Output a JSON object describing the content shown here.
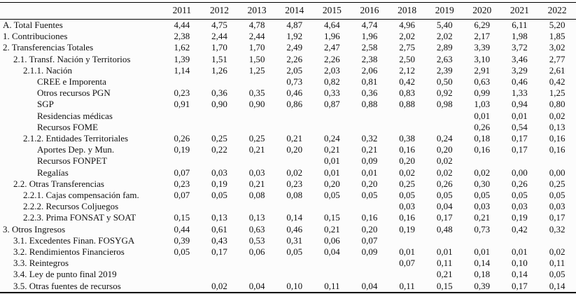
{
  "table": {
    "columns": [
      "",
      "2011",
      "2012",
      "2013",
      "2014",
      "2015",
      "2016",
      "2018",
      "2019",
      "2020",
      "2021",
      "2022"
    ],
    "rows": [
      {
        "label": "A. Total Fuentes",
        "indent": 0,
        "values": [
          "4,44",
          "4,75",
          "4,78",
          "4,87",
          "4,64",
          "4,74",
          "4,96",
          "5,40",
          "6,29",
          "6,11",
          "5,20"
        ]
      },
      {
        "label": "1. Contribuciones",
        "indent": 0,
        "values": [
          "2,38",
          "2,44",
          "2,44",
          "1,92",
          "1,96",
          "1,96",
          "2,02",
          "2,02",
          "2,17",
          "1,98",
          "1,85"
        ]
      },
      {
        "label": "2. Transferencias Totales",
        "indent": 0,
        "values": [
          "1,62",
          "1,70",
          "1,70",
          "2,49",
          "2,47",
          "2,58",
          "2,75",
          "2,89",
          "3,39",
          "3,72",
          "3,02"
        ]
      },
      {
        "label": "2.1. Transf. Nación y Territorios",
        "indent": 1,
        "values": [
          "1,39",
          "1,51",
          "1,50",
          "2,26",
          "2,26",
          "2,38",
          "2,50",
          "2,63",
          "3,10",
          "3,46",
          "2,77"
        ]
      },
      {
        "label": "2.1.1. Nación",
        "indent": 2,
        "values": [
          "1,14",
          "1,26",
          "1,25",
          "2,05",
          "2,03",
          "2,06",
          "2,12",
          "2,39",
          "2,91",
          "3,29",
          "2,61"
        ]
      },
      {
        "label": "CREE e Imporenta",
        "indent": 3,
        "values": [
          "",
          "",
          "",
          "0,73",
          "0,82",
          "0,81",
          "0,42",
          "0,50",
          "0,63",
          "0,46",
          "0,42"
        ]
      },
      {
        "label": "Otros recursos PGN",
        "indent": 3,
        "values": [
          "0,23",
          "0,36",
          "0,35",
          "0,46",
          "0,33",
          "0,36",
          "0,83",
          "0,92",
          "0,99",
          "1,33",
          "1,25"
        ]
      },
      {
        "label": "SGP",
        "indent": 3,
        "values": [
          "0,91",
          "0,90",
          "0,90",
          "0,86",
          "0,87",
          "0,88",
          "0,88",
          "0,98",
          "1,03",
          "0,94",
          "0,80"
        ]
      },
      {
        "label": "Residencias médicas",
        "indent": 3,
        "values": [
          "",
          "",
          "",
          "",
          "",
          "",
          "",
          "",
          "0,01",
          "0,01",
          "0,02"
        ]
      },
      {
        "label": "Recursos FOME",
        "indent": 3,
        "values": [
          "",
          "",
          "",
          "",
          "",
          "",
          "",
          "",
          "0,26",
          "0,54",
          "0,13"
        ]
      },
      {
        "label": "2.1.2. Entidades Territoriales",
        "indent": 2,
        "values": [
          "0,26",
          "0,25",
          "0,25",
          "0,21",
          "0,24",
          "0,32",
          "0,38",
          "0,24",
          "0,18",
          "0,17",
          "0,16"
        ]
      },
      {
        "label": "Aportes Dep. y Mun.",
        "indent": 3,
        "values": [
          "0,19",
          "0,22",
          "0,21",
          "0,20",
          "0,21",
          "0,21",
          "0,16",
          "0,20",
          "0,16",
          "0,17",
          "0,16"
        ]
      },
      {
        "label": "Recursos FONPET",
        "indent": 3,
        "values": [
          "",
          "",
          "",
          "",
          "0,01",
          "0,09",
          "0,20",
          "0,02",
          "",
          "",
          ""
        ]
      },
      {
        "label": "Regalías",
        "indent": 3,
        "values": [
          "0,07",
          "0,03",
          "0,03",
          "0,02",
          "0,01",
          "0,01",
          "0,02",
          "0,02",
          "0,02",
          "0,00",
          "0,00"
        ]
      },
      {
        "label": "2.2. Otras Transferencias",
        "indent": 1,
        "values": [
          "0,23",
          "0,19",
          "0,21",
          "0,23",
          "0,20",
          "0,20",
          "0,25",
          "0,26",
          "0,30",
          "0,26",
          "0,25"
        ]
      },
      {
        "label": "2.2.1. Cajas compensación fam.",
        "indent": 2,
        "values": [
          "0,07",
          "0,05",
          "0,08",
          "0,08",
          "0,05",
          "0,05",
          "0,05",
          "0,05",
          "0,05",
          "0,05",
          "0,05"
        ]
      },
      {
        "label": "2.2.2. Recursos Coljuegos",
        "indent": 2,
        "values": [
          "",
          "",
          "",
          "",
          "",
          "",
          "0,03",
          "0,04",
          "0,03",
          "0,03",
          "0,03"
        ]
      },
      {
        "label": "2.2.3. Prima FONSAT y SOAT",
        "indent": 2,
        "values": [
          "0,15",
          "0,13",
          "0,13",
          "0,14",
          "0,15",
          "0,16",
          "0,16",
          "0,17",
          "0,21",
          "0,19",
          "0,17"
        ]
      },
      {
        "label": "3. Otros Ingresos",
        "indent": 0,
        "values": [
          "0,44",
          "0,61",
          "0,63",
          "0,46",
          "0,21",
          "0,20",
          "0,19",
          "0,48",
          "0,73",
          "0,42",
          "0,32"
        ]
      },
      {
        "label": "3.1. Excedentes Finan. FOSYGA",
        "indent": 1,
        "values": [
          "0,39",
          "0,43",
          "0,53",
          "0,31",
          "0,06",
          "0,07",
          "",
          "",
          "",
          "",
          ""
        ]
      },
      {
        "label": "3.2. Rendimientos Financieros",
        "indent": 1,
        "values": [
          "0,05",
          "0,17",
          "0,06",
          "0,05",
          "0,04",
          "0,09",
          "0,01",
          "0,01",
          "0,01",
          "0,01",
          "0,02"
        ]
      },
      {
        "label": "3.3. Reintegros",
        "indent": 1,
        "values": [
          "",
          "",
          "",
          "",
          "",
          "",
          "0,07",
          "0,11",
          "0,14",
          "0,10",
          "0,11"
        ]
      },
      {
        "label": "3.4. Ley de punto final 2019",
        "indent": 1,
        "values": [
          "",
          "",
          "",
          "",
          "",
          "",
          "",
          "0,21",
          "0,18",
          "0,14",
          "0,05"
        ]
      },
      {
        "label": "3.5. Otras fuentes de recursos",
        "indent": 1,
        "values": [
          "",
          "0,02",
          "0,04",
          "0,10",
          "0,11",
          "0,04",
          "0,11",
          "0,15",
          "0,39",
          "0,17",
          "0,14"
        ]
      }
    ]
  }
}
